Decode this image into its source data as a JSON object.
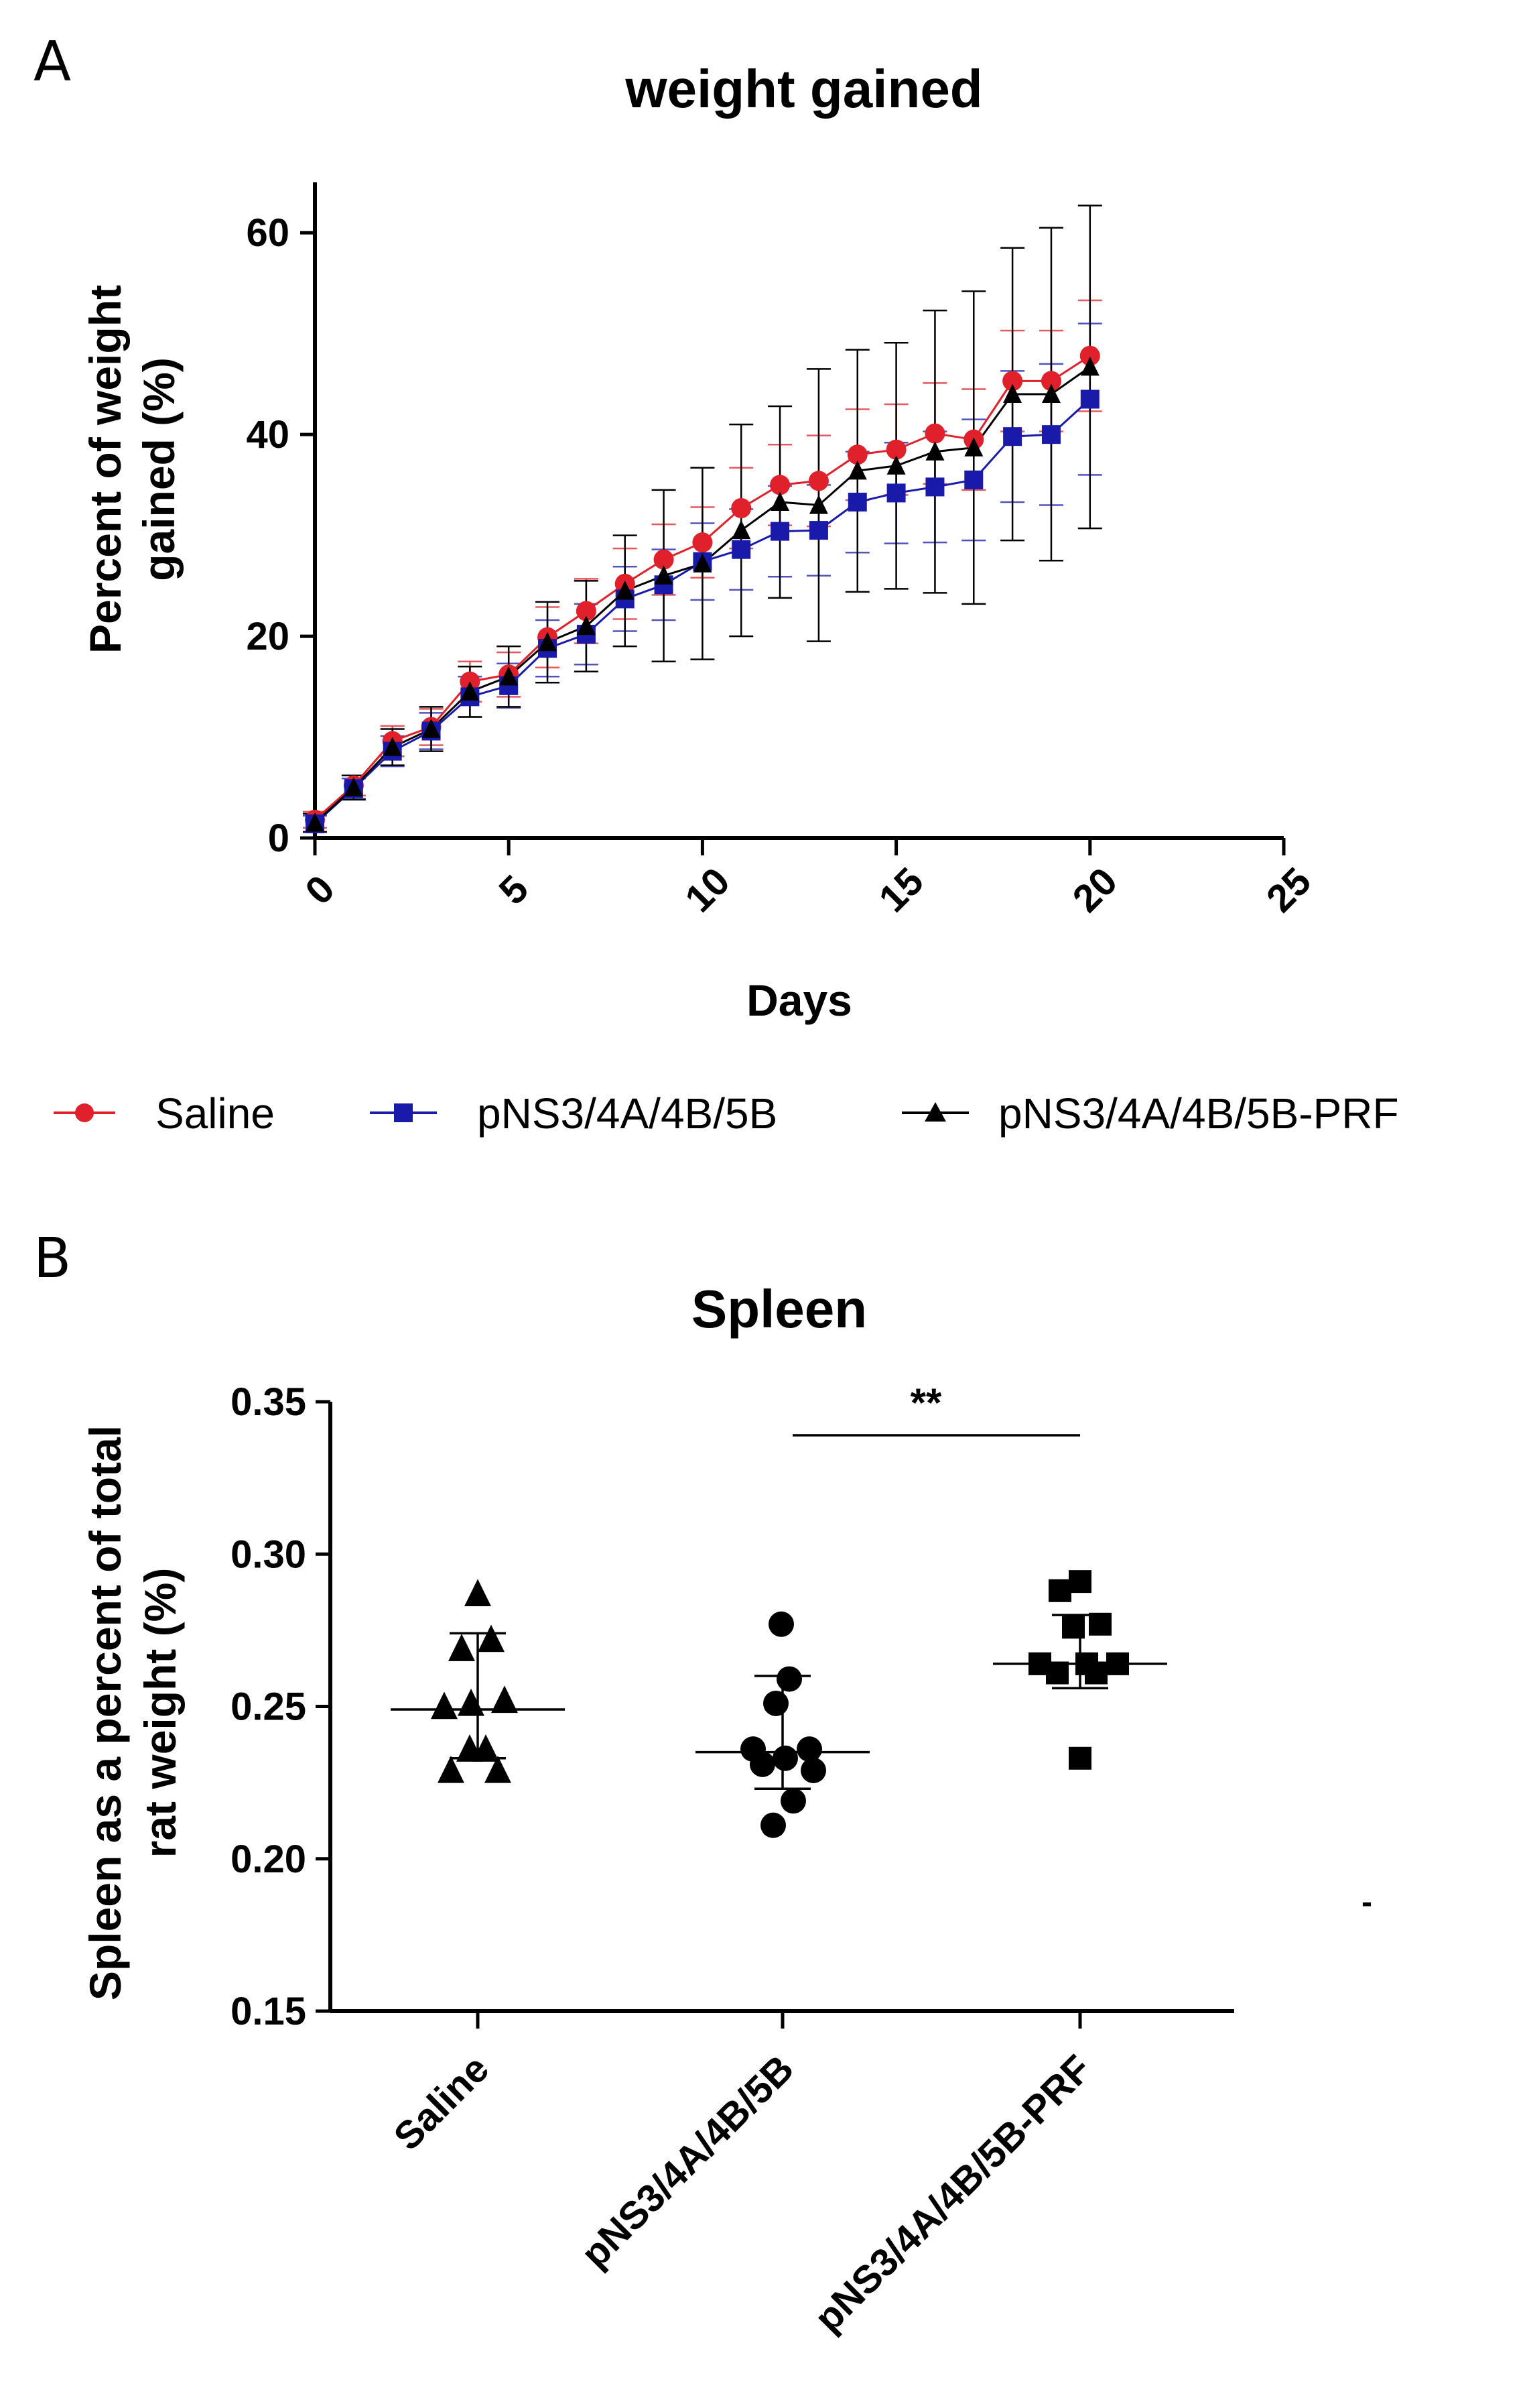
{
  "chart_data": [
    {
      "panel": "A",
      "type": "line",
      "title": "weight gained",
      "xlabel": "Days",
      "ylabel": "Percent of weight gained (%)",
      "ylabel_lines": [
        "Percent of weight",
        "gained (%)"
      ],
      "xlim": [
        0,
        25
      ],
      "ylim": [
        0,
        65
      ],
      "xticks": [
        "0",
        "5",
        "10",
        "15",
        "20",
        "25"
      ],
      "yticks": [
        "0",
        "20",
        "40",
        "60"
      ],
      "x": [
        0,
        1,
        2,
        3,
        4,
        5,
        6,
        7,
        8,
        9,
        10,
        11,
        12,
        13,
        14,
        15,
        16,
        17,
        18,
        19,
        20
      ],
      "series": [
        {
          "name": "Saline",
          "color": "#e0202a",
          "marker": "circle",
          "values": [
            1.8,
            5.2,
            9.6,
            11.0,
            15.5,
            16.2,
            19.9,
            22.5,
            25.2,
            27.6,
            29.3,
            32.7,
            35.0,
            35.4,
            38.0,
            38.5,
            40.1,
            39.5,
            45.3,
            45.3,
            47.8
          ],
          "errors": [
            0.8,
            1.0,
            1.5,
            1.8,
            2.0,
            2.2,
            3.0,
            3.2,
            3.5,
            3.5,
            3.5,
            4.0,
            4.0,
            4.5,
            4.5,
            4.5,
            5.0,
            5.0,
            5.0,
            5.0,
            5.5
          ]
        },
        {
          "name": "pNS3/4A/4B/5B",
          "color": "#1a1aaa",
          "marker": "square",
          "values": [
            1.4,
            4.9,
            8.6,
            10.6,
            14.0,
            15.1,
            18.8,
            20.2,
            23.7,
            25.1,
            27.4,
            28.6,
            30.4,
            30.5,
            33.3,
            34.2,
            34.8,
            35.5,
            39.8,
            40.0,
            43.5
          ],
          "errors": [
            0.8,
            1.0,
            1.5,
            1.8,
            2.0,
            2.2,
            2.8,
            3.0,
            3.2,
            3.5,
            3.8,
            4.0,
            4.5,
            4.5,
            5.0,
            5.0,
            5.5,
            6.0,
            6.5,
            7.0,
            7.5
          ]
        },
        {
          "name": "pNS3/4A/4B/5B-PRF",
          "color": "#000000",
          "marker": "triangle",
          "values": [
            1.5,
            5.0,
            9.0,
            10.8,
            14.5,
            16.0,
            19.4,
            21.0,
            24.5,
            26.0,
            27.2,
            30.5,
            33.3,
            33.0,
            36.4,
            36.9,
            38.3,
            38.7,
            44.0,
            44.0,
            46.7
          ],
          "errors": [
            0.9,
            1.2,
            1.8,
            2.2,
            2.5,
            3.0,
            4.0,
            4.5,
            5.5,
            8.5,
            9.5,
            10.5,
            9.5,
            13.5,
            12.0,
            12.2,
            14.0,
            15.5,
            14.5,
            16.5,
            16.0
          ]
        }
      ],
      "legend_position": "bottom"
    },
    {
      "panel": "B",
      "type": "scatter",
      "title": "Spleen",
      "xlabel": "",
      "ylabel": "Spleen as a percent of total rat weight (%)",
      "ylabel_lines": [
        "Spleen as a percent of total",
        "rat weight (%)"
      ],
      "ylim": [
        0.15,
        0.35
      ],
      "yticks": [
        "0.15",
        "0.20",
        "0.25",
        "0.30",
        "0.35"
      ],
      "categories": [
        "Saline",
        "pNS3/4A/4B/5B",
        "pNS3/4A/4B/5B-PRF"
      ],
      "groups": [
        {
          "name": "Saline",
          "marker": "triangle",
          "points": [
            [
              -0.2,
              0.229
            ],
            [
              0.15,
              0.229
            ],
            [
              -0.06,
              0.236
            ],
            [
              0.06,
              0.236
            ],
            [
              -0.25,
              0.25
            ],
            [
              -0.05,
              0.251
            ],
            [
              0.2,
              0.252
            ],
            [
              -0.12,
              0.269
            ],
            [
              0.1,
              0.272
            ],
            [
              0.0,
              0.287
            ]
          ],
          "mean": 0.249,
          "sd_low": 0.233,
          "sd_high": 0.274
        },
        {
          "name": "pNS3/4A/4B/5B",
          "marker": "circle",
          "points": [
            [
              -0.07,
              0.211
            ],
            [
              0.08,
              0.219
            ],
            [
              0.23,
              0.229
            ],
            [
              -0.15,
              0.231
            ],
            [
              0.02,
              0.233
            ],
            [
              -0.22,
              0.236
            ],
            [
              0.2,
              0.236
            ],
            [
              -0.05,
              0.251
            ],
            [
              0.05,
              0.259
            ],
            [
              -0.01,
              0.277
            ]
          ],
          "mean": 0.235,
          "sd_low": 0.223,
          "sd_high": 0.26
        },
        {
          "name": "pNS3/4A/4B/5B-PRF",
          "marker": "square",
          "points": [
            [
              0.0,
              0.233
            ],
            [
              -0.17,
              0.261
            ],
            [
              0.12,
              0.261
            ],
            [
              -0.3,
              0.264
            ],
            [
              0.05,
              0.264
            ],
            [
              0.28,
              0.264
            ],
            [
              -0.05,
              0.276
            ],
            [
              0.15,
              0.277
            ],
            [
              -0.15,
              0.288
            ],
            [
              0.0,
              0.291
            ]
          ],
          "mean": 0.264,
          "sd_low": 0.256,
          "sd_high": 0.28
        }
      ],
      "significance": {
        "label": "**",
        "between": [
          "pNS3/4A/4B/5B",
          "pNS3/4A/4B/5B-PRF"
        ],
        "y": 0.339
      }
    }
  ],
  "labels": {
    "panel_a": "A",
    "panel_b": "B",
    "stray_mark": "-"
  }
}
